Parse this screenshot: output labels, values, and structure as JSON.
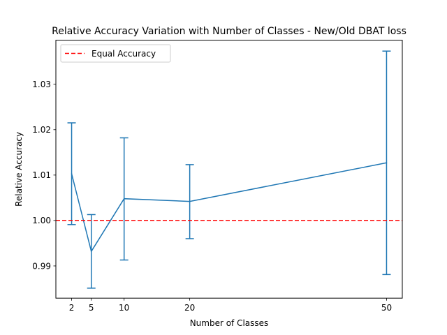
{
  "chart_data": {
    "type": "line",
    "title": "Relative Accuracy Variation with Number of Classes - New/Old DBAT loss",
    "xlabel": "Number of Classes",
    "ylabel": "Relative Accuracy",
    "x": [
      2,
      5,
      10,
      20,
      50
    ],
    "series": [
      {
        "values": [
          1.0103,
          0.9932,
          1.0048,
          1.0042,
          1.0127
        ],
        "error_lower": [
          0.9991,
          0.9851,
          0.9913,
          0.996,
          0.9881
        ],
        "error_upper": [
          1.0215,
          1.0013,
          1.0182,
          1.0123,
          1.0373
        ],
        "color": "#1f77b4"
      }
    ],
    "reference_line": {
      "y": 1.0,
      "label": "Equal Accuracy",
      "color": "#ff0000",
      "style": "dashed"
    },
    "xticks": [
      2,
      5,
      10,
      20,
      50
    ],
    "xtick_labels": [
      "2",
      "5",
      "10",
      "20",
      "50"
    ],
    "yticks": [
      0.99,
      1.0,
      1.01,
      1.02,
      1.03
    ],
    "ytick_labels": [
      "0.99",
      "1.00",
      "1.01",
      "1.02",
      "1.03"
    ],
    "xlim": [
      -0.4,
      52.4
    ],
    "ylim": [
      0.9829,
      1.0397
    ],
    "grid": false,
    "legend_position": "upper-left"
  }
}
